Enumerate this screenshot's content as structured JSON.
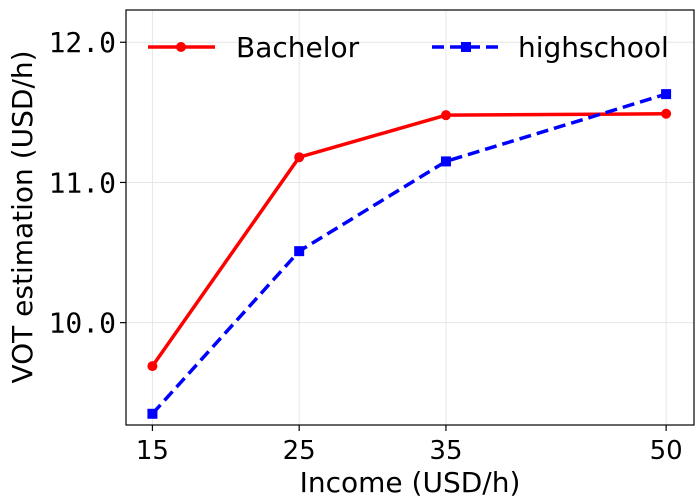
{
  "chart_data": {
    "type": "line",
    "title": "",
    "xlabel": "Income (USD/h)",
    "ylabel": "VOT estimation (USD/h)",
    "x": [
      15,
      25,
      35,
      50
    ],
    "xticks": [
      "15",
      "25",
      "35",
      "50"
    ],
    "yticks": [
      "10.0",
      "11.0",
      "12.0"
    ],
    "xlim": [
      13.2,
      51.9
    ],
    "ylim": [
      9.27,
      12.23
    ],
    "grid": true,
    "legend_position": "top",
    "series": [
      {
        "name": "Bachelor",
        "values": [
          9.69,
          11.18,
          11.48,
          11.49
        ],
        "color": "#ff0000",
        "line_style": "solid",
        "marker": "circle"
      },
      {
        "name": "highschool",
        "values": [
          9.35,
          10.51,
          11.15,
          11.63
        ],
        "color": "#0000ff",
        "line_style": "dashed",
        "marker": "square"
      }
    ]
  }
}
